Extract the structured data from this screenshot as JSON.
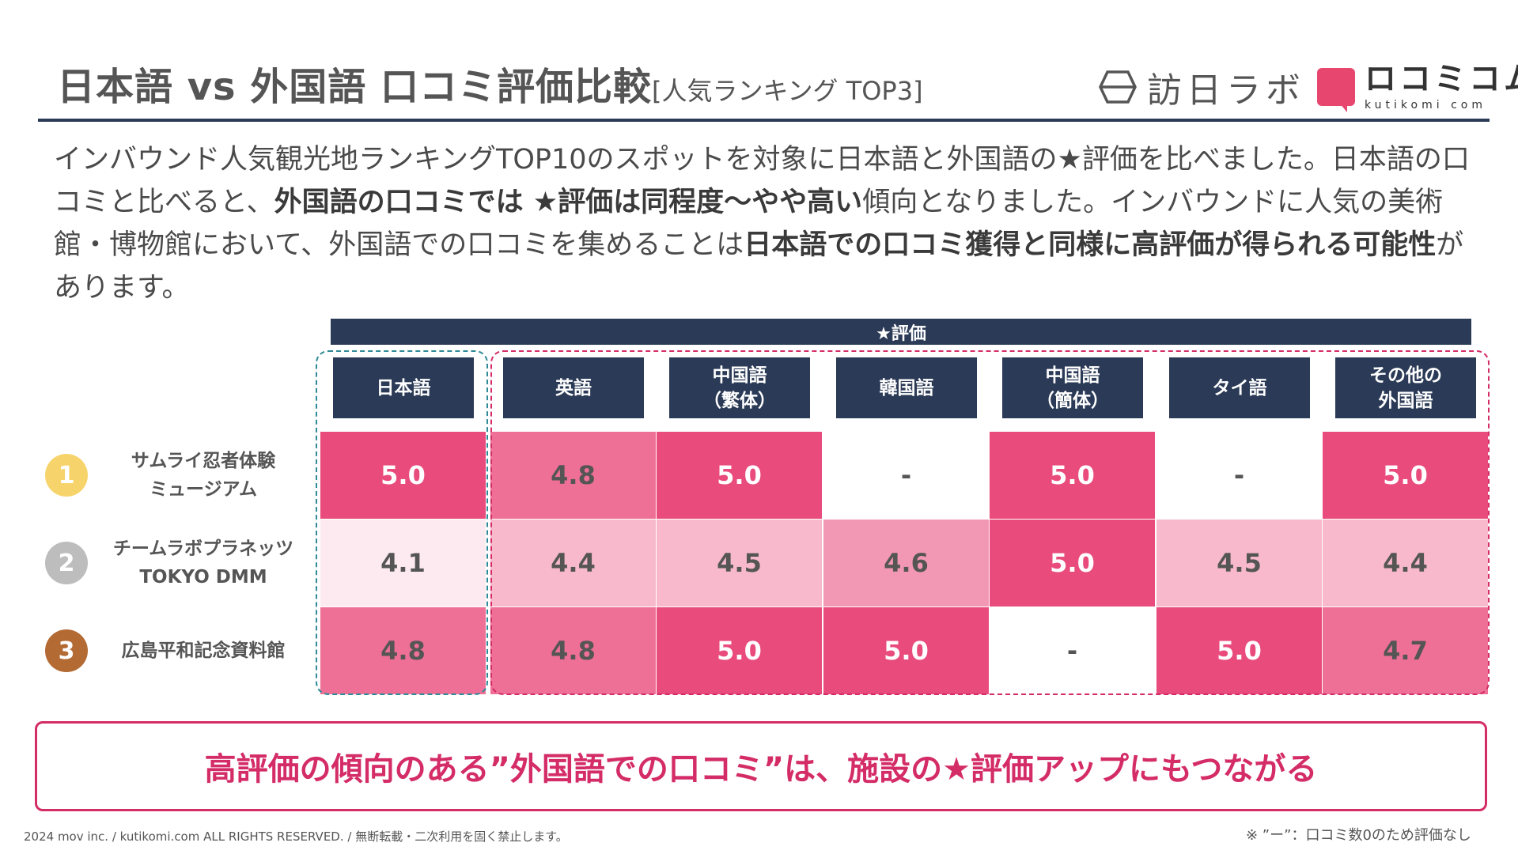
{
  "header": {
    "title": "日本語 vs 外国語 口コミ評価比較",
    "title_sub": "[人気ランキング TOP3]",
    "logo1_text": "訪日ラボ",
    "logo2_text": "ロコミコム",
    "logo2_sub": "kutikomi com"
  },
  "intro": {
    "p1": "インバウンド人気観光地ランキングTOP10のスポットを対象に日本語と外国語の★評価を比べました。日本語の口コミと比べると、",
    "b1": "外国語の口コミでは ★評価は同程度〜やや高い",
    "p2": "傾向となりました。インバウンドに人気の美術館・博物館において、外国語での口コミを集めることは",
    "b2": "日本語での口コミ獲得と同様に高評価が得られる可能性",
    "p3": "があります。"
  },
  "table": {
    "group_header": "★評価",
    "columns": [
      "日本語",
      "英語",
      "中国語\n（繁体）",
      "韓国語",
      "中国語\n（簡体）",
      "タイ語",
      "その他の\n外国語"
    ],
    "rows": [
      {
        "rank": "1",
        "rank_color": "#f7d46b",
        "name": "サムライ忍者体験\nミュージアム",
        "values": [
          "5.0",
          "4.8",
          "5.0",
          "-",
          "5.0",
          "-",
          "5.0"
        ]
      },
      {
        "rank": "2",
        "rank_color": "#bdbdbd",
        "name": "チームラボプラネッツ\nTOKYO DMM",
        "values": [
          "4.1",
          "4.4",
          "4.5",
          "4.6",
          "5.0",
          "4.5",
          "4.4"
        ]
      },
      {
        "rank": "3",
        "rank_color": "#b36a33",
        "name": "広島平和記念資料館",
        "values": [
          "4.8",
          "4.8",
          "5.0",
          "5.0",
          "-",
          "5.0",
          "4.7"
        ]
      }
    ]
  },
  "colors": {
    "navy": "#2b3a56",
    "accent": "#d42c66",
    "teal": "#2d8a96",
    "score_5_0": "#e84b7c",
    "score_4_8": "#ef7097",
    "score_4_7": "#ef7097",
    "score_4_6": "#f398b4",
    "score_4_5": "#f7b9cb",
    "score_4_4": "#f7b9cb",
    "score_4_1": "#fdeaf0",
    "score_none": "#ffffff"
  },
  "callout": "高評価の傾向のある”外国語での口コミ”は、施設の★評価アップにもつながる",
  "copyright": "2024 mov inc. / kutikomi.com ALL RIGHTS RESERVED. / 無断転載・二次利用を固く禁止します。",
  "footnote": "※ ”ー”：口コミ数0のため評価なし"
}
